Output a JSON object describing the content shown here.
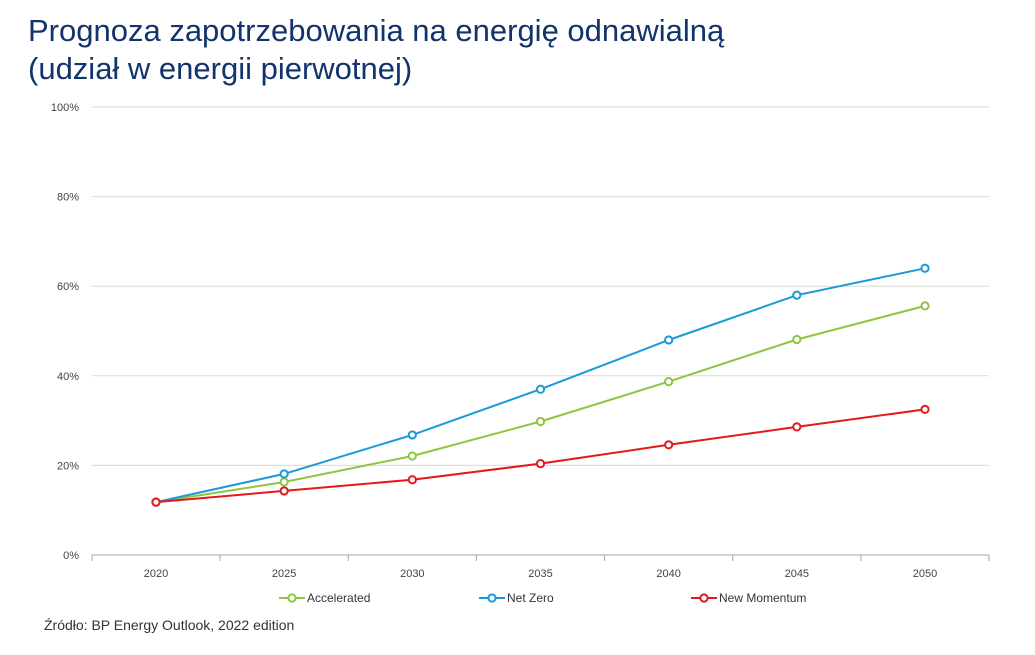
{
  "title_line1": "Prognoza zapotrzebowania na energię odnawialną",
  "title_line2": "(udział w energii pierwotnej)",
  "source": "Źródło: BP Energy Outlook, 2022 edition",
  "chart_data": {
    "type": "line",
    "title": "Prognoza zapotrzebowania na energię odnawialną (udział w energii pierwotnej)",
    "xlabel": "",
    "ylabel": "",
    "x": [
      2020,
      2025,
      2030,
      2035,
      2040,
      2045,
      2050
    ],
    "x_tick_labels": [
      "2020",
      "2025",
      "2030",
      "2035",
      "2040",
      "2045",
      "2050"
    ],
    "ylim": [
      0,
      100
    ],
    "y_ticks": [
      0,
      20,
      40,
      60,
      80,
      100
    ],
    "y_tick_labels": [
      "0%",
      "20%",
      "40%",
      "60%",
      "80%",
      "100%"
    ],
    "grid": true,
    "legend_position": "bottom",
    "series": [
      {
        "name": "Accelerated",
        "color": "#8dc63f",
        "values": [
          11.8,
          16.3,
          22.1,
          29.8,
          38.7,
          48.1,
          55.6
        ]
      },
      {
        "name": "Net Zero",
        "color": "#1a9ad6",
        "values": [
          11.8,
          18.1,
          26.8,
          37.0,
          48.0,
          58.0,
          64.0
        ]
      },
      {
        "name": "New Momentum",
        "color": "#e3191b",
        "values": [
          11.8,
          14.3,
          16.8,
          20.4,
          24.6,
          28.6,
          32.5
        ]
      }
    ]
  }
}
